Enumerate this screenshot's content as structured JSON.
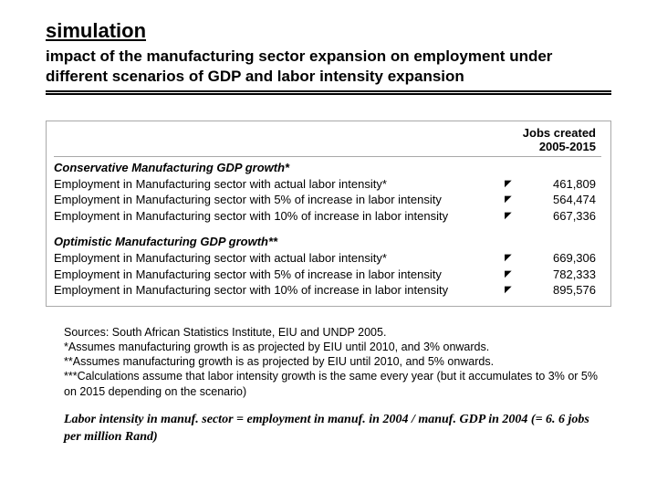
{
  "title": "simulation",
  "subtitle": "impact of the manufacturing sector expansion on employment under different scenarios of GDP and labor intensity expansion",
  "table": {
    "header1": "Jobs created",
    "header2": "2005-2015",
    "groups": [
      {
        "heading": "Conservative Manufacturing GDP growth*",
        "rows": [
          {
            "label": "Employment in Manufacturing sector with actual labor intensity*",
            "mark": "◤",
            "value": "461,809"
          },
          {
            "label": "Employment in Manufacturing sector with 5% of increase in labor intensity",
            "mark": "◤",
            "value": "564,474"
          },
          {
            "label": "Employment in Manufacturing sector with 10% of increase in labor intensity",
            "mark": "◤",
            "value": "667,336"
          }
        ]
      },
      {
        "heading": "Optimistic Manufacturing GDP growth**",
        "rows": [
          {
            "label": "Employment in Manufacturing sector with actual labor intensity*",
            "mark": "◤",
            "value": "669,306"
          },
          {
            "label": "Employment in Manufacturing sector with 5% of increase in labor intensity",
            "mark": "◤",
            "value": "782,333"
          },
          {
            "label": "Employment in Manufacturing sector with 10% of increase in labor intensity",
            "mark": "◤",
            "value": "895,576"
          }
        ]
      }
    ]
  },
  "sources": [
    "Sources: South African Statistics Institute, EIU and UNDP 2005.",
    "*Assumes manufacturing growth is as projected by EIU until 2010, and 3% onwards.",
    "**Assumes manufacturing growth is as projected by EIU until 2010, and 5% onwards.",
    "***Calculations assume that labor intensity growth is the same every year (but it accumulates to 3% or 5% on 2015 depending on the scenario)"
  ],
  "formula": "Labor intensity in manuf. sector = employment in manuf. in 2004 / manuf. GDP in 2004 (= 6. 6 jobs per million Rand)"
}
